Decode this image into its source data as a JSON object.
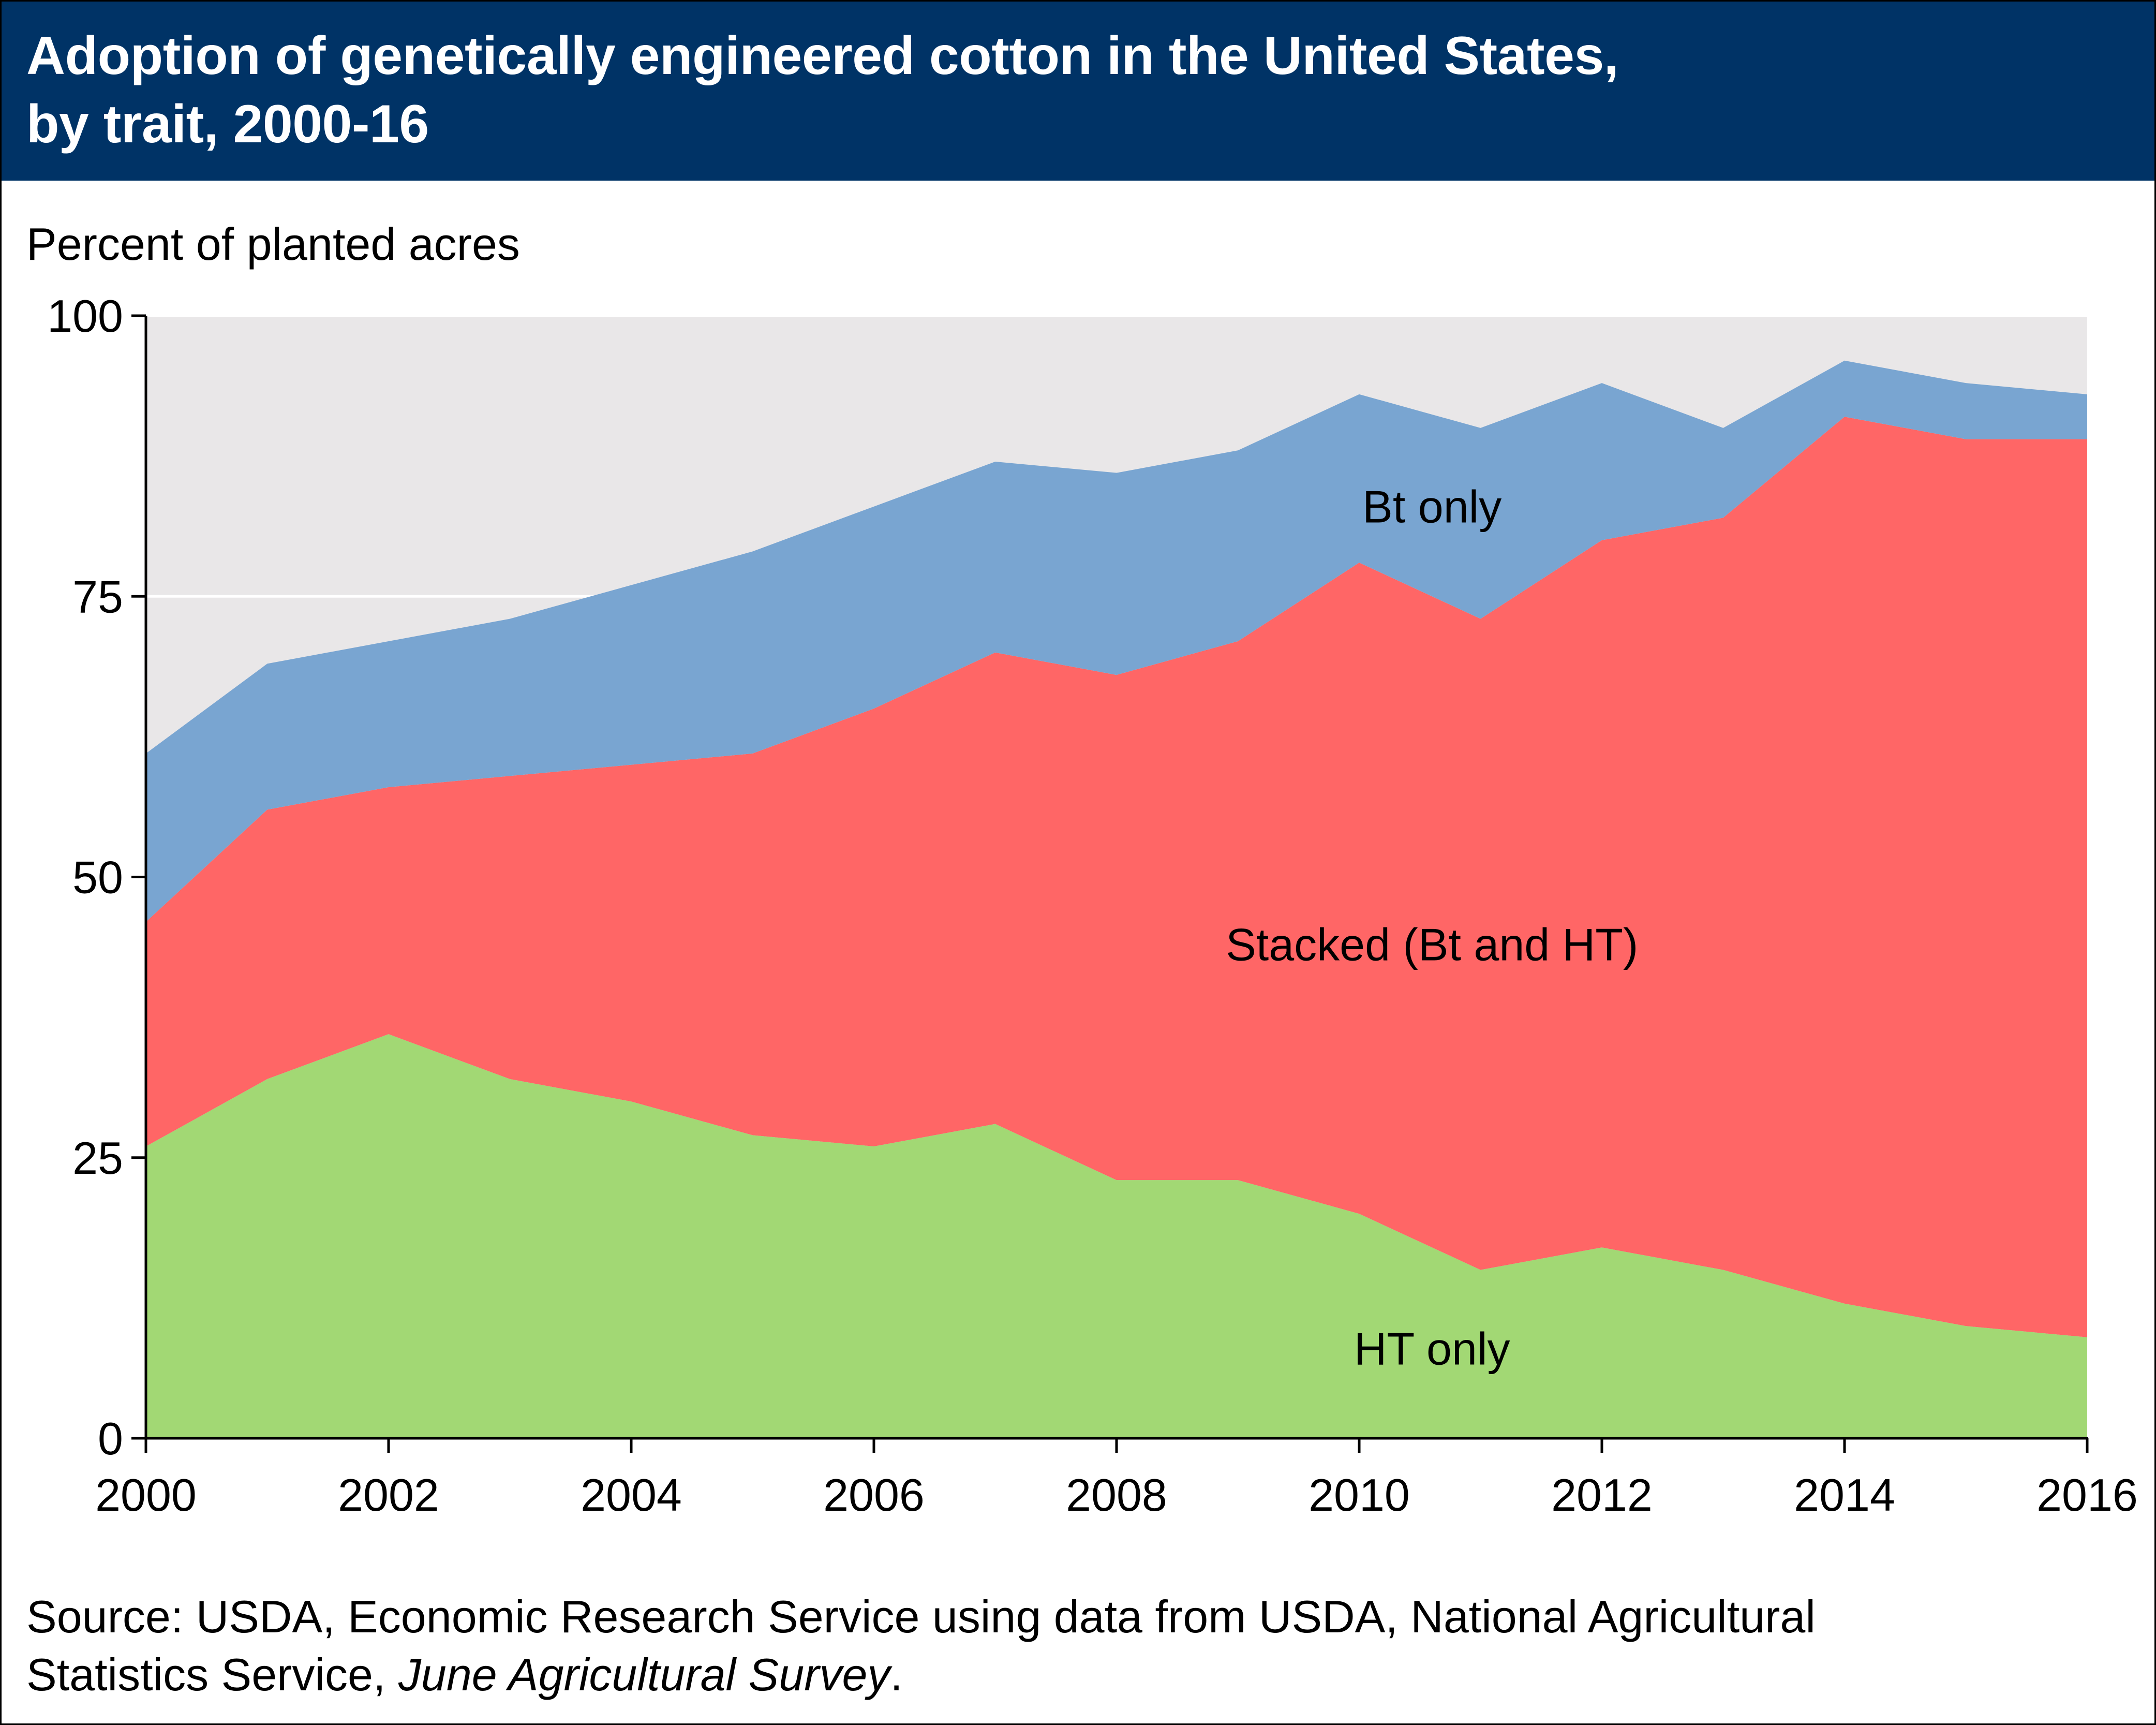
{
  "header": {
    "title_line1": "Adoption of genetically engineered cotton in the United States,",
    "title_line2": "by trait, 2000-16",
    "background": "#003366"
  },
  "source": {
    "prefix": "Source: USDA, Economic Research Service using data from USDA, National Agricultural",
    "line2_start": "Statistics Service, ",
    "line2_italic": "June Agricultural Survey",
    "line2_end": "."
  },
  "chart_data": {
    "type": "area",
    "stacked": true,
    "ylabel": "Percent of planted acres",
    "xlabel": "",
    "ylim": [
      0,
      100
    ],
    "xlim": [
      2000,
      2016
    ],
    "yticks": [
      0,
      25,
      50,
      75,
      100
    ],
    "xticks": [
      2000,
      2002,
      2004,
      2006,
      2008,
      2010,
      2012,
      2014,
      2016
    ],
    "gridlines": "horizontal",
    "plot_background": "#e9e7e8",
    "x": [
      2000,
      2001,
      2002,
      2003,
      2004,
      2005,
      2006,
      2007,
      2008,
      2009,
      2010,
      2011,
      2012,
      2013,
      2014,
      2015,
      2016
    ],
    "series": [
      {
        "name": "HT only",
        "color": "#a2d874",
        "values": [
          26,
          32,
          36,
          32,
          30,
          27,
          26,
          28,
          23,
          23,
          20,
          15,
          17,
          15,
          12,
          10,
          9
        ]
      },
      {
        "name": "Stacked (Bt and HT)",
        "color": "#ff6666",
        "values": [
          20,
          24,
          22,
          27,
          30,
          34,
          39,
          42,
          45,
          48,
          58,
          58,
          63,
          67,
          79,
          79,
          80
        ]
      },
      {
        "name": "Bt only",
        "color": "#79a5d1",
        "values": [
          15,
          13,
          13,
          14,
          16,
          18,
          18,
          17,
          18,
          17,
          15,
          17,
          14,
          8,
          5,
          5,
          4
        ]
      }
    ],
    "annotations": [
      {
        "text": "Bt only",
        "x": 2010.6,
        "y": 83
      },
      {
        "text": "Stacked (Bt and HT)",
        "x": 2010.6,
        "y": 44
      },
      {
        "text": "HT only",
        "x": 2010.6,
        "y": 8
      }
    ]
  }
}
